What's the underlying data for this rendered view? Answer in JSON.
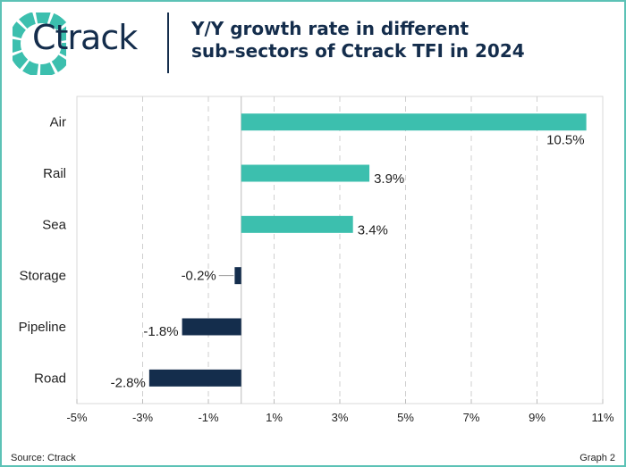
{
  "header": {
    "logo_text": "Ctrack",
    "title_line1": "Y/Y growth rate in different",
    "title_line2": "sub-sectors of Ctrack TFI in 2024"
  },
  "footer": {
    "source": "Source: Ctrack",
    "graph_label": "Graph 2"
  },
  "colors": {
    "positive": "#3cbfae",
    "negative": "#142d4c",
    "border": "#5cc2b6"
  },
  "chart_data": {
    "type": "bar",
    "orientation": "horizontal",
    "title": "Y/Y growth rate in different sub-sectors of Ctrack TFI in 2024",
    "categories": [
      "Air",
      "Rail",
      "Sea",
      "Storage",
      "Pipeline",
      "Road"
    ],
    "values": [
      10.5,
      3.9,
      3.4,
      -0.2,
      -1.8,
      -2.8
    ],
    "labels": [
      "10.5%",
      "3.9%",
      "3.4%",
      "-0.2%",
      "-1.8%",
      "-2.8%"
    ],
    "xlim": [
      -5,
      11
    ],
    "xticks": [
      -5,
      -3,
      -1,
      1,
      3,
      5,
      7,
      9,
      11
    ],
    "xtick_labels": [
      "-5%",
      "-3%",
      "-1%",
      "1%",
      "3%",
      "5%",
      "7%",
      "9%",
      "11%"
    ],
    "grid": "vertical dashed",
    "legend": "none"
  }
}
